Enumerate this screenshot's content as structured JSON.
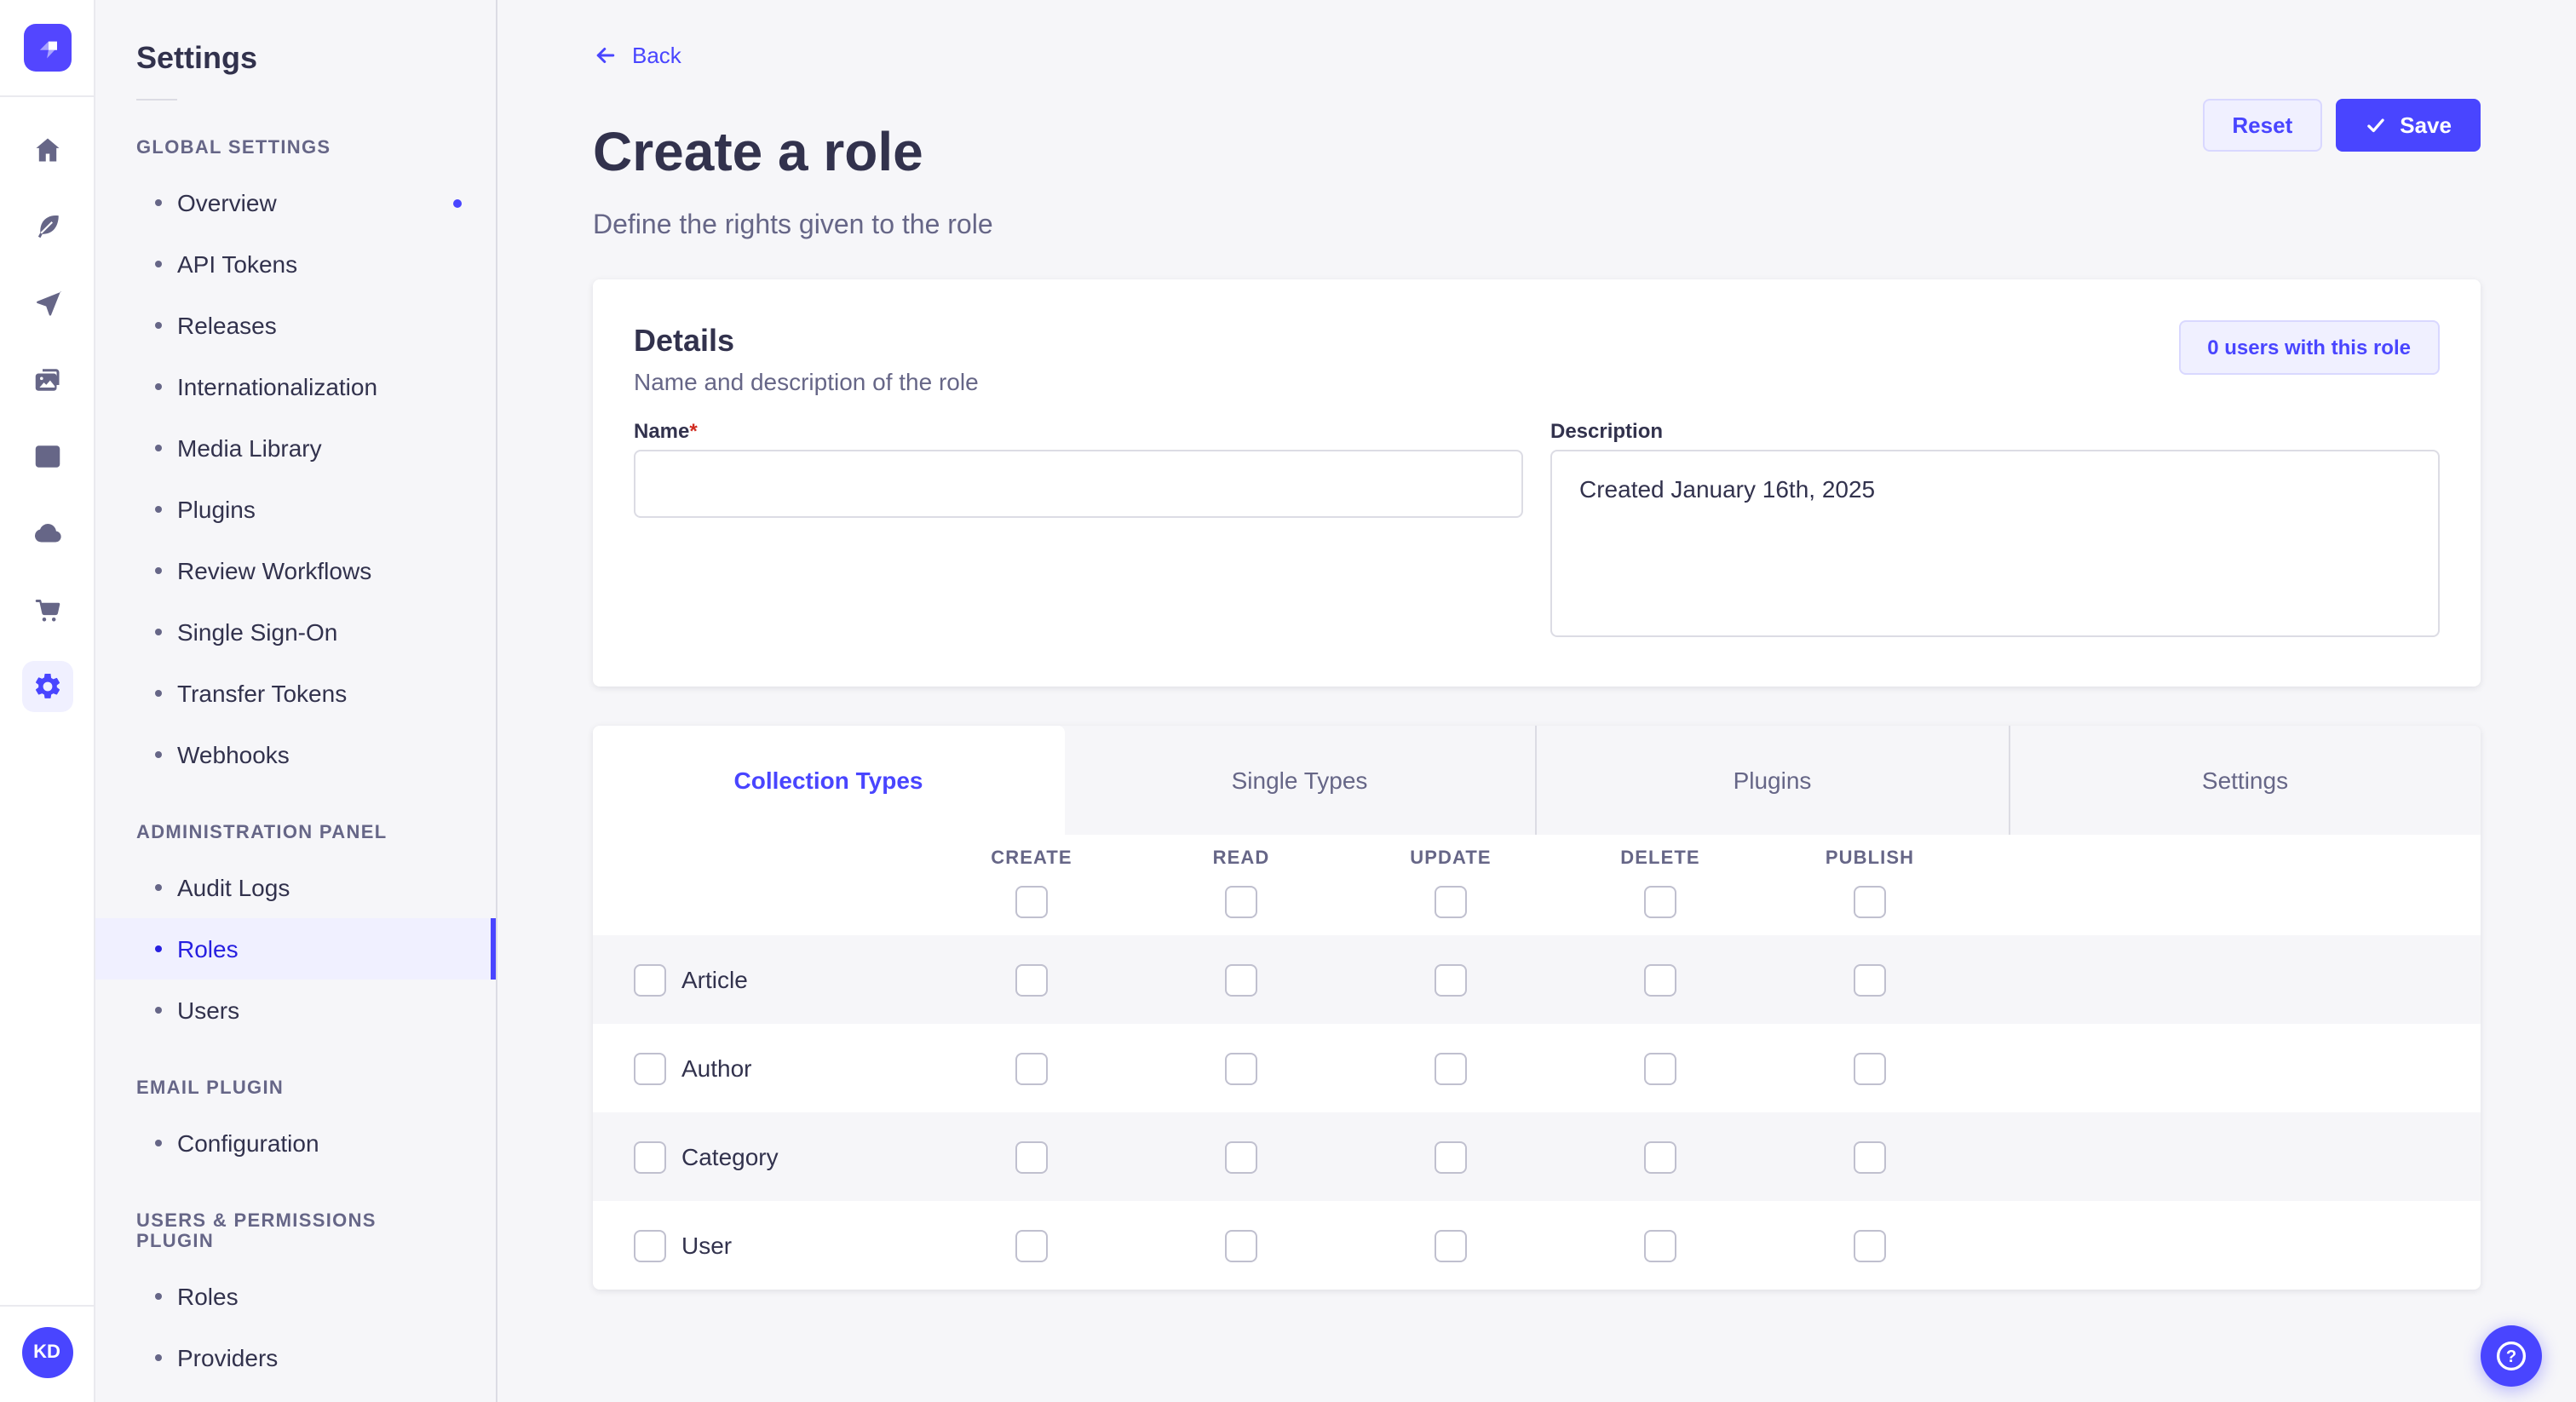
{
  "colors": {
    "accent": "#4945ff",
    "accent_active_text": "#271fe0",
    "accent_soft_bg": "#f0f0ff",
    "accent_soft_border": "#d9d8ff",
    "text_primary": "#32324d",
    "text_secondary": "#666687",
    "page_bg": "#f6f6f9",
    "checkbox_border": "#c0c0cf",
    "required_red": "#d02b20"
  },
  "rail": {
    "logo_icon": "strapi-logo-icon",
    "items": [
      {
        "name": "nav-home",
        "icon": "home",
        "active": false
      },
      {
        "name": "nav-content-type-builder",
        "icon": "feather",
        "active": false
      },
      {
        "name": "nav-deploy",
        "icon": "send",
        "active": false
      },
      {
        "name": "nav-media-library",
        "icon": "images",
        "active": false
      },
      {
        "name": "nav-content-manager",
        "icon": "layout",
        "active": false
      },
      {
        "name": "nav-strapi-cloud",
        "icon": "cloud",
        "active": false
      },
      {
        "name": "nav-marketplace",
        "icon": "cart",
        "active": false
      },
      {
        "name": "nav-settings",
        "icon": "gear",
        "active": true
      }
    ],
    "avatar_initials": "KD"
  },
  "subnav": {
    "title": "Settings",
    "sections": [
      {
        "label": "GLOBAL SETTINGS",
        "items": [
          {
            "label": "Overview",
            "notification": true
          },
          {
            "label": "API Tokens"
          },
          {
            "label": "Releases"
          },
          {
            "label": "Internationalization"
          },
          {
            "label": "Media Library"
          },
          {
            "label": "Plugins"
          },
          {
            "label": "Review Workflows"
          },
          {
            "label": "Single Sign-On"
          },
          {
            "label": "Transfer Tokens"
          },
          {
            "label": "Webhooks"
          }
        ]
      },
      {
        "label": "ADMINISTRATION PANEL",
        "items": [
          {
            "label": "Audit Logs"
          },
          {
            "label": "Roles",
            "active": true
          },
          {
            "label": "Users"
          }
        ]
      },
      {
        "label": "EMAIL PLUGIN",
        "items": [
          {
            "label": "Configuration"
          }
        ]
      },
      {
        "label": "USERS & PERMISSIONS PLUGIN",
        "items": [
          {
            "label": "Roles"
          },
          {
            "label": "Providers"
          }
        ]
      }
    ]
  },
  "page_header": {
    "back_label": "Back",
    "title": "Create a role",
    "subtitle": "Define the rights given to the role",
    "reset_label": "Reset",
    "save_label": "Save"
  },
  "details_card": {
    "title": "Details",
    "subtitle": "Name and description of the role",
    "users_badge": "0 users with this role",
    "name_label": "Name",
    "required_mark": "*",
    "name_value": "",
    "description_label": "Description",
    "description_value": "Created January 16th, 2025"
  },
  "permissions_card": {
    "tabs": [
      {
        "label": "Collection Types",
        "active": true
      },
      {
        "label": "Single Types",
        "active": false
      },
      {
        "label": "Plugins",
        "active": false
      },
      {
        "label": "Settings",
        "active": false
      }
    ],
    "columns": [
      "CREATE",
      "READ",
      "UPDATE",
      "DELETE",
      "PUBLISH"
    ],
    "rows": [
      {
        "label": "Article"
      },
      {
        "label": "Author"
      },
      {
        "label": "Category"
      },
      {
        "label": "User"
      }
    ],
    "all_checkboxes_checked": false
  }
}
